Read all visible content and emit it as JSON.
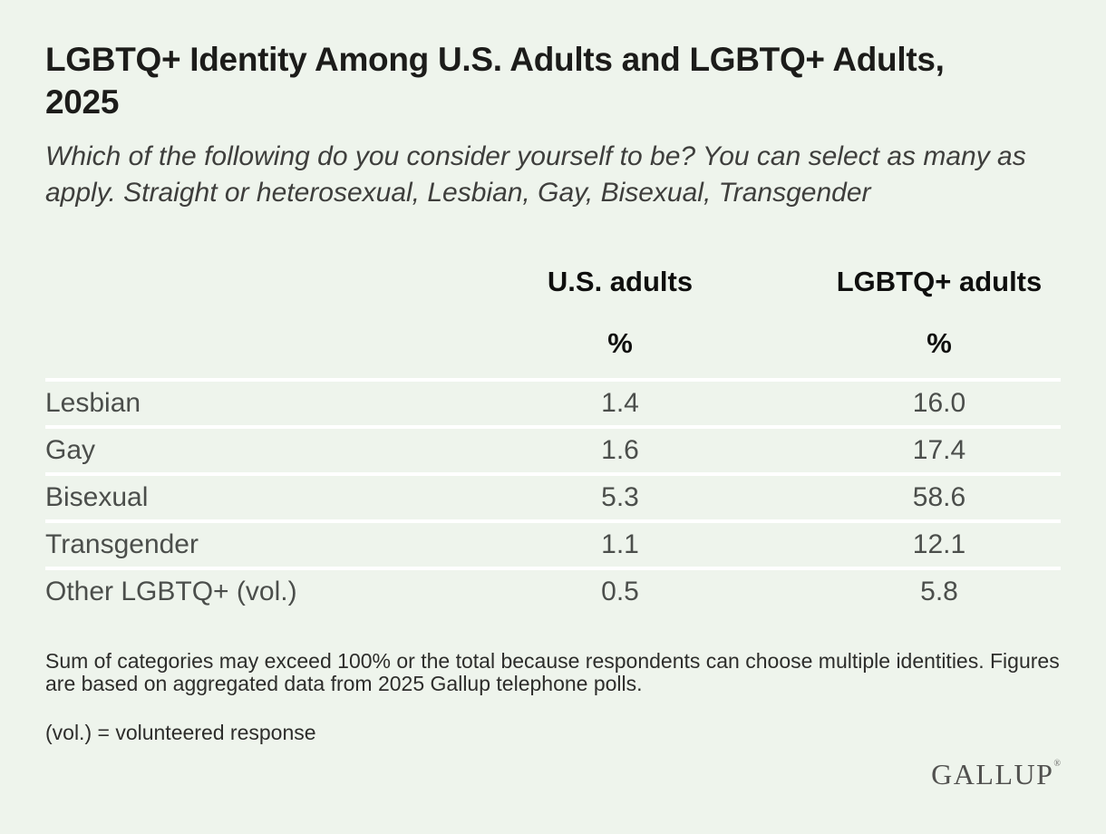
{
  "header": {
    "title": "LGBTQ+ Identity Among U.S. Adults and LGBTQ+ Adults, 2025",
    "subtitle": "Which of the following do you consider yourself to be? You can select as many as apply. Straight or heterosexual, Lesbian, Gay, Bisexual, Transgender"
  },
  "chart_data": {
    "type": "table",
    "title": "LGBTQ+ Identity Among U.S. Adults and LGBTQ+ Adults, 2025",
    "subtitle": "Which of the following do you consider yourself to be? You can select as many as apply. Straight or heterosexual, Lesbian, Gay, Bisexual, Transgender",
    "categories": [
      "Lesbian",
      "Gay",
      "Bisexual",
      "Transgender",
      "Other LGBTQ+ (vol.)"
    ],
    "series": [
      {
        "name": "U.S. adults",
        "unit": "%",
        "values": [
          "1.4",
          "1.6",
          "5.3",
          "1.1",
          "0.5"
        ]
      },
      {
        "name": "LGBTQ+ adults",
        "unit": "%",
        "values": [
          "16.0",
          "17.4",
          "58.6",
          "12.1",
          "5.8"
        ]
      }
    ],
    "layout": {
      "grid": "off",
      "row_separator_color": "#ffffff"
    }
  },
  "footer": {
    "note": "Sum of categories may exceed 100% or the total because respondents can choose multiple identities. Figures are based on aggregated data from 2025 Gallup telephone polls.",
    "vol_note": "(vol.) = volunteered response",
    "logo": "GALLUP",
    "registered_mark": "®"
  },
  "colors": {
    "background": "#eef4ec",
    "title_text": "#1c1c1a",
    "body_text": "#4b4e4b",
    "row_divider": "#ffffff",
    "logo_text": "#51514f"
  }
}
